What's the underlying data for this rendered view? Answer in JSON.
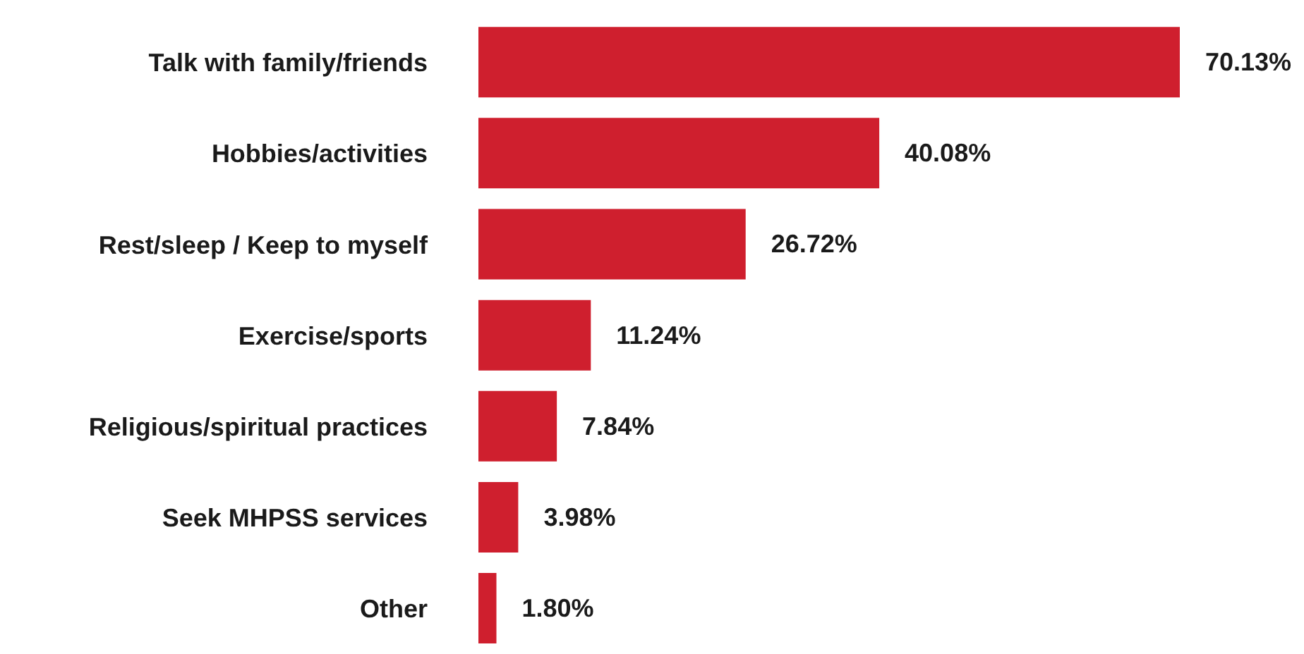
{
  "chart_data": {
    "type": "bar",
    "orientation": "horizontal",
    "categories": [
      "Talk with family/friends",
      "Hobbies/activities",
      "Rest/sleep / Keep to myself",
      "Exercise/sports",
      "Religious/spiritual practices",
      "Seek MHPSS services",
      "Other"
    ],
    "values": [
      70.13,
      40.08,
      26.72,
      11.24,
      7.84,
      3.98,
      1.8
    ],
    "value_labels": [
      "70.13%",
      "40.08%",
      "26.72%",
      "11.24%",
      "7.84%",
      "3.98%",
      "1.80%"
    ],
    "color": "#cf1f2e",
    "grid": false,
    "legend": false
  }
}
